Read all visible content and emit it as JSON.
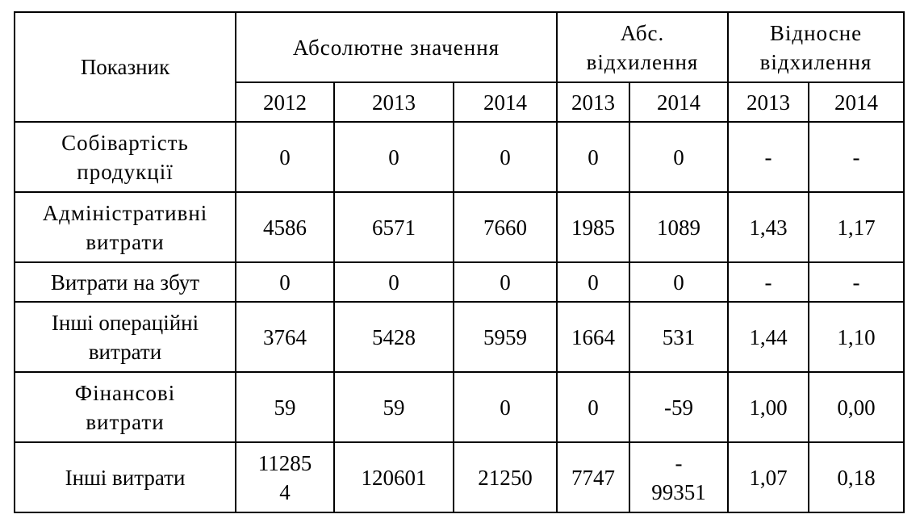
{
  "table": {
    "header": {
      "indicator": "Показник",
      "absolute_value": "Абсолютне значення",
      "abs_deviation": "Абс.\nвідхилення",
      "rel_deviation": "Відносне\nвідхилення",
      "years": [
        "2012",
        "2013",
        "2014",
        "2013",
        "2014",
        "2013",
        "2014"
      ]
    },
    "rows": [
      {
        "label": "Собівартість\nпродукції",
        "values": [
          "0",
          "0",
          "0",
          "0",
          "0",
          "-",
          "-"
        ]
      },
      {
        "label": "Адміністративні\nвитрати",
        "values": [
          "4586",
          "6571",
          "7660",
          "1985",
          "1089",
          "1,43",
          "1,17"
        ]
      },
      {
        "label": "Витрати на збут",
        "values": [
          "0",
          "0",
          "0",
          "0",
          "0",
          "-",
          "-"
        ]
      },
      {
        "label": "Інші операційні\nвитрати",
        "values": [
          "3764",
          "5428",
          "5959",
          "1664",
          "531",
          "1,44",
          "1,10"
        ]
      },
      {
        "label": "Фінансові\nвитрати",
        "values": [
          "59",
          "59",
          "0",
          "0",
          "-59",
          "1,00",
          "0,00"
        ]
      },
      {
        "label": "Інші витрати",
        "values": [
          "11285\n4",
          "120601",
          "21250",
          "7747",
          "-\n99351",
          "1,07",
          "0,18"
        ]
      }
    ]
  }
}
